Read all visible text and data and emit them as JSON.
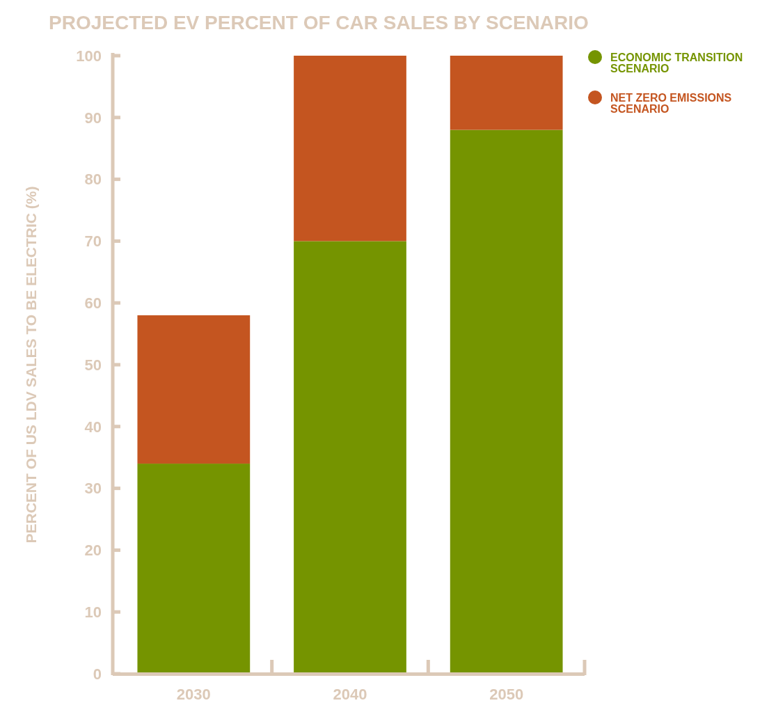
{
  "chart_data": {
    "type": "bar",
    "title": "PROJECTED EV PERCENT OF CAR SALES BY SCENARIO",
    "ylabel": "PERCENT OF US LDV SALES TO BE ELECTRIC (%)",
    "categories": [
      "2030",
      "2040",
      "2050"
    ],
    "stacked": true,
    "series": [
      {
        "name": "ECONOMIC TRANSITION SCENARIO",
        "color": "#759400",
        "values": [
          34,
          70,
          88
        ]
      },
      {
        "name": "NET ZERO EMISSIONS SCENARIO",
        "color": "#c45520",
        "values": [
          24,
          30,
          12
        ]
      }
    ],
    "ylim": [
      0,
      100
    ],
    "yticks": [
      0,
      10,
      20,
      30,
      40,
      50,
      60,
      70,
      80,
      90,
      100
    ],
    "grid": false,
    "legend": "top right"
  }
}
